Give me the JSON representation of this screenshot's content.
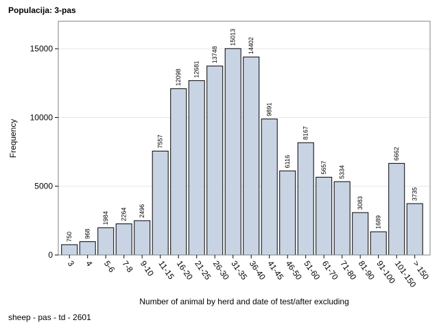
{
  "header": {
    "title": "Populacija: 3-pas"
  },
  "footer": {
    "note": "sheep - pas - td - 2601"
  },
  "colors": {
    "bar_fill": "#c8d4e4",
    "bar_stroke": "#000000",
    "grid": "#e6e6e6",
    "frame": "#7f7f7f"
  },
  "chart_data": {
    "type": "bar",
    "title": "Populacija: 3-pas",
    "xlabel": "Number of animal by herd and date of test/after excluding",
    "ylabel": "Frequency",
    "ylim": [
      0,
      17000
    ],
    "yticks": [
      0,
      5000,
      10000,
      15000
    ],
    "grid": true,
    "categories": [
      "3",
      "4",
      "5-6",
      "7-8",
      "9-10",
      "11-15",
      "16-20",
      "21-25",
      "26-30",
      "31-35",
      "36-40",
      "41-45",
      "46-50",
      "51-60",
      "61-70",
      "71-80",
      "81-90",
      "91-100",
      "101-150",
      "> 150"
    ],
    "values": [
      750,
      968,
      1984,
      2264,
      2496,
      7557,
      12098,
      12681,
      13748,
      15013,
      14402,
      9891,
      6116,
      8167,
      5657,
      5334,
      3083,
      1689,
      6662,
      3735
    ]
  }
}
